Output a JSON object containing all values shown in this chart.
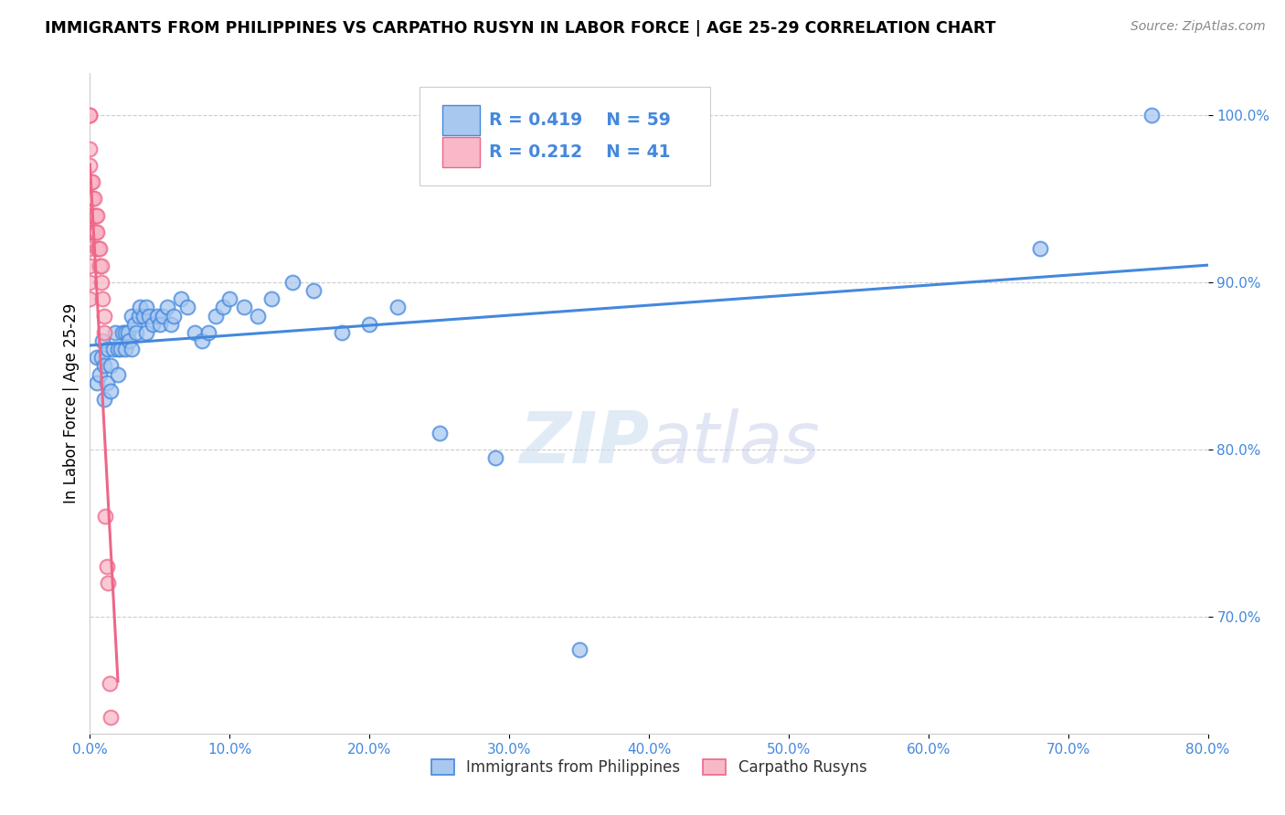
{
  "title": "IMMIGRANTS FROM PHILIPPINES VS CARPATHO RUSYN IN LABOR FORCE | AGE 25-29 CORRELATION CHART",
  "source": "Source: ZipAtlas.com",
  "ylabel": "In Labor Force | Age 25-29",
  "x_min": 0.0,
  "x_max": 0.8,
  "y_min": 0.63,
  "y_max": 1.025,
  "blue_R": 0.419,
  "blue_N": 59,
  "pink_R": 0.212,
  "pink_N": 41,
  "blue_color": "#A8C8F0",
  "pink_color": "#F8B8C8",
  "blue_line_color": "#4488DD",
  "pink_line_color": "#EE6688",
  "watermark_zip": "ZIP",
  "watermark_atlas": "atlas",
  "legend_label_blue": "Immigrants from Philippines",
  "legend_label_pink": "Carpatho Rusyns",
  "blue_x": [
    0.005,
    0.005,
    0.007,
    0.008,
    0.009,
    0.01,
    0.01,
    0.012,
    0.013,
    0.015,
    0.015,
    0.017,
    0.018,
    0.02,
    0.02,
    0.022,
    0.023,
    0.025,
    0.025,
    0.027,
    0.028,
    0.03,
    0.03,
    0.032,
    0.033,
    0.035,
    0.036,
    0.038,
    0.04,
    0.04,
    0.042,
    0.045,
    0.048,
    0.05,
    0.052,
    0.055,
    0.058,
    0.06,
    0.065,
    0.07,
    0.075,
    0.08,
    0.085,
    0.09,
    0.095,
    0.1,
    0.11,
    0.12,
    0.13,
    0.145,
    0.16,
    0.18,
    0.2,
    0.22,
    0.25,
    0.29,
    0.35,
    0.68,
    0.76
  ],
  "blue_y": [
    0.84,
    0.855,
    0.845,
    0.855,
    0.865,
    0.83,
    0.85,
    0.84,
    0.86,
    0.835,
    0.85,
    0.86,
    0.87,
    0.845,
    0.86,
    0.86,
    0.87,
    0.86,
    0.87,
    0.87,
    0.865,
    0.86,
    0.88,
    0.875,
    0.87,
    0.88,
    0.885,
    0.88,
    0.87,
    0.885,
    0.88,
    0.875,
    0.88,
    0.875,
    0.88,
    0.885,
    0.875,
    0.88,
    0.89,
    0.885,
    0.87,
    0.865,
    0.87,
    0.88,
    0.885,
    0.89,
    0.885,
    0.88,
    0.89,
    0.9,
    0.895,
    0.87,
    0.875,
    0.885,
    0.81,
    0.795,
    0.68,
    0.92,
    1.0
  ],
  "pink_x": [
    0.0,
    0.0,
    0.0,
    0.0,
    0.0,
    0.0,
    0.0,
    0.0,
    0.0,
    0.0,
    0.0,
    0.0,
    0.001,
    0.001,
    0.001,
    0.001,
    0.002,
    0.002,
    0.002,
    0.002,
    0.003,
    0.003,
    0.003,
    0.004,
    0.004,
    0.005,
    0.005,
    0.005,
    0.006,
    0.007,
    0.007,
    0.008,
    0.008,
    0.009,
    0.01,
    0.01,
    0.011,
    0.012,
    0.013,
    0.014,
    0.015
  ],
  "pink_y": [
    1.0,
    1.0,
    0.98,
    0.97,
    0.96,
    0.95,
    0.94,
    0.93,
    0.92,
    0.91,
    0.9,
    0.89,
    0.96,
    0.95,
    0.94,
    0.93,
    0.96,
    0.95,
    0.94,
    0.93,
    0.95,
    0.94,
    0.93,
    0.94,
    0.93,
    0.94,
    0.93,
    0.92,
    0.92,
    0.92,
    0.91,
    0.91,
    0.9,
    0.89,
    0.88,
    0.87,
    0.76,
    0.73,
    0.72,
    0.66,
    0.64
  ]
}
